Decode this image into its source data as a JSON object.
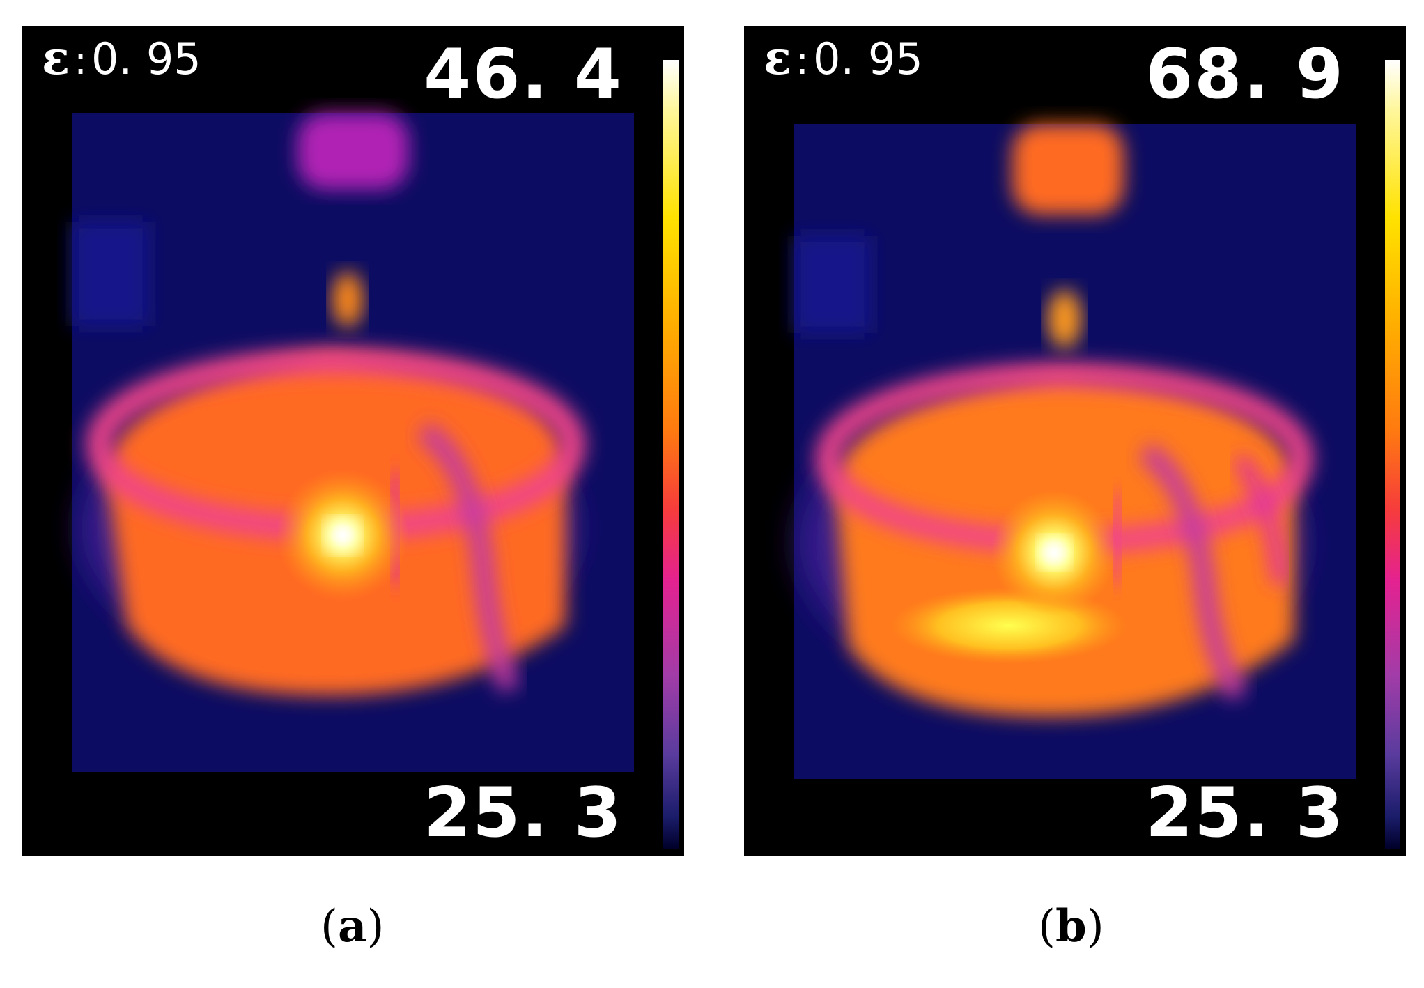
{
  "panels": [
    {
      "id": "a",
      "emissivity_symbol": "ε",
      "emissivity_sep": ":",
      "emissivity_value": "0. 95",
      "temp_max": "46. 4",
      "temp_min": "25. 3",
      "caption_open": "(",
      "caption_letter": "a",
      "caption_close": ")",
      "hot_spot_level": 0.95
    },
    {
      "id": "b",
      "emissivity_symbol": "ε",
      "emissivity_sep": ":",
      "emissivity_value": "0. 95",
      "temp_max": "68. 9",
      "temp_min": "25. 3",
      "caption_open": "(",
      "caption_letter": "b",
      "caption_close": ")",
      "hot_spot_level": 0.9
    }
  ],
  "palette": {
    "background": "#000000",
    "cold": "#0a0a5a",
    "cool": "#3a1f8f",
    "mid": "#e0349a",
    "warm": "#ff6a22",
    "hot": "#ff9a1a",
    "hottest": "#ffff60"
  }
}
